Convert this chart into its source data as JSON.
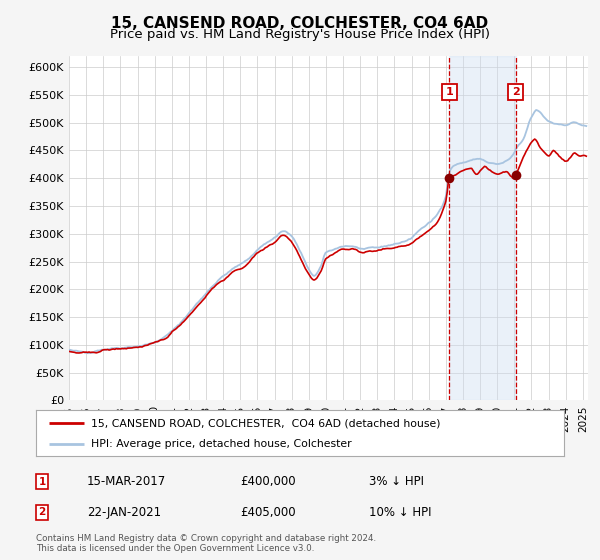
{
  "title": "15, CANSEND ROAD, COLCHESTER, CO4 6AD",
  "subtitle": "Price paid vs. HM Land Registry's House Price Index (HPI)",
  "ylim": [
    0,
    620000
  ],
  "yticks": [
    0,
    50000,
    100000,
    150000,
    200000,
    250000,
    300000,
    350000,
    400000,
    450000,
    500000,
    550000,
    600000
  ],
  "ytick_labels": [
    "£0",
    "£50K",
    "£100K",
    "£150K",
    "£200K",
    "£250K",
    "£300K",
    "£350K",
    "£400K",
    "£450K",
    "£500K",
    "£550K",
    "£600K"
  ],
  "hpi_color": "#a8c4e0",
  "price_color": "#cc0000",
  "marker_color": "#880000",
  "vline_color": "#cc0000",
  "shade_color": "#ccddf0",
  "sale1_date_num": 2017.21,
  "sale1_price": 400000,
  "sale2_date_num": 2021.07,
  "sale2_price": 405000,
  "legend_house_label": "15, CANSEND ROAD, COLCHESTER,  CO4 6AD (detached house)",
  "legend_hpi_label": "HPI: Average price, detached house, Colchester",
  "note1_date": "15-MAR-2017",
  "note1_price": "£400,000",
  "note1_rel": "3% ↓ HPI",
  "note2_date": "22-JAN-2021",
  "note2_price": "£405,000",
  "note2_rel": "10% ↓ HPI",
  "footer": "Contains HM Land Registry data © Crown copyright and database right 2024.\nThis data is licensed under the Open Government Licence v3.0.",
  "bg_color": "#f5f5f5",
  "plot_bg_color": "#ffffff",
  "grid_color": "#cccccc"
}
